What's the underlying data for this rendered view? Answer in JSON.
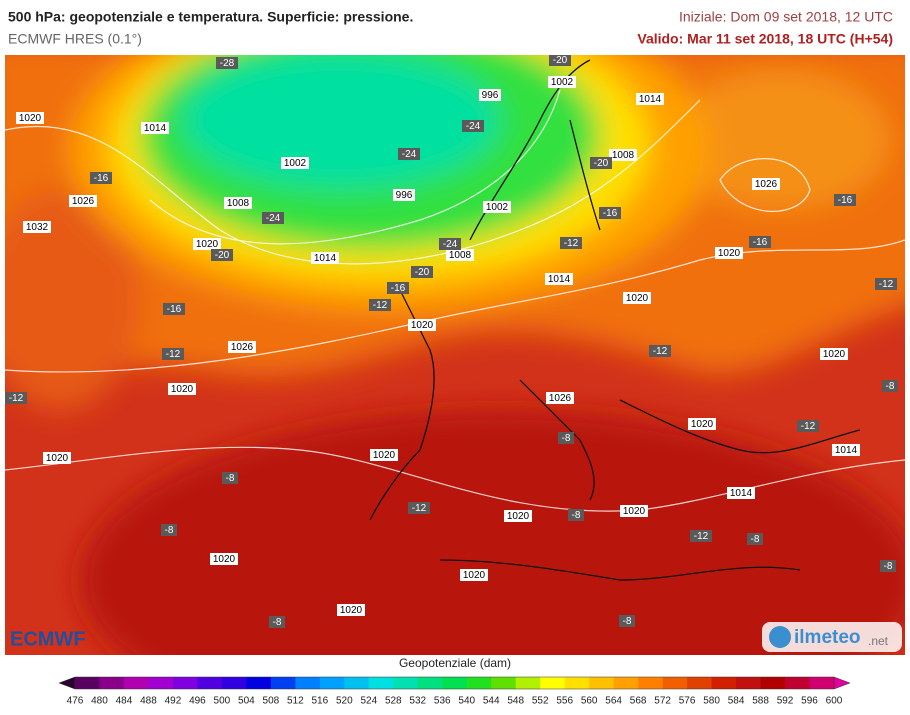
{
  "header": {
    "title": "500 hPa: geopotenziale e temperatura. Superficie: pressione.",
    "model": "ECMWF HRES (0.1°)",
    "init": "Iniziale: Dom 09 set 2018, 12 UTC",
    "valid": "Valido: Mar 11 set 2018, 18 UTC (H+54)"
  },
  "map": {
    "pressure_labels": [
      1020,
      1014,
      1026,
      1032,
      1002,
      1008,
      996,
      996,
      1002,
      1014,
      1008,
      1002,
      1008,
      1014,
      1020,
      1026,
      1020,
      1014,
      1020,
      1020,
      1026,
      1020,
      1020,
      1026,
      1020,
      1020,
      1014,
      1014,
      1020,
      1020,
      1020,
      1020,
      1020,
      1020
    ],
    "temperature_labels": [
      -28,
      -20,
      -24,
      -24,
      -20,
      -16,
      -24,
      -20,
      -24,
      -20,
      -16,
      -12,
      -16,
      -12,
      -16,
      -16,
      -16,
      -12,
      -12,
      -12,
      -12,
      -8,
      -12,
      -8,
      -8,
      -12,
      -8,
      -8,
      -12,
      -8,
      -8,
      -8,
      -8
    ]
  },
  "logos": {
    "left": "ECMWF",
    "right": "ilmeteo",
    "right_suffix": ".net"
  },
  "colorbar": {
    "title": "Geopotenziale (dam)",
    "ticks": [
      476,
      480,
      484,
      488,
      492,
      496,
      500,
      504,
      508,
      512,
      516,
      520,
      524,
      528,
      532,
      536,
      540,
      544,
      548,
      552,
      556,
      560,
      564,
      568,
      572,
      576,
      580,
      584,
      588,
      592,
      596,
      600
    ],
    "under_color": "#2b0030",
    "over_color": "#e000a0",
    "colors": [
      "#5a0060",
      "#8a008a",
      "#b000b0",
      "#a000d0",
      "#8000e0",
      "#5000e0",
      "#3000e0",
      "#0000e0",
      "#0040f0",
      "#0080ff",
      "#00a0ff",
      "#00c0f0",
      "#00e0e0",
      "#00e0b0",
      "#00e080",
      "#00e050",
      "#20e020",
      "#60e000",
      "#b0f000",
      "#ffff00",
      "#ffe000",
      "#ffc000",
      "#ffa000",
      "#ff8000",
      "#f06000",
      "#e04000",
      "#d02000",
      "#c01010",
      "#b00000",
      "#c00030",
      "#d00070"
    ]
  }
}
